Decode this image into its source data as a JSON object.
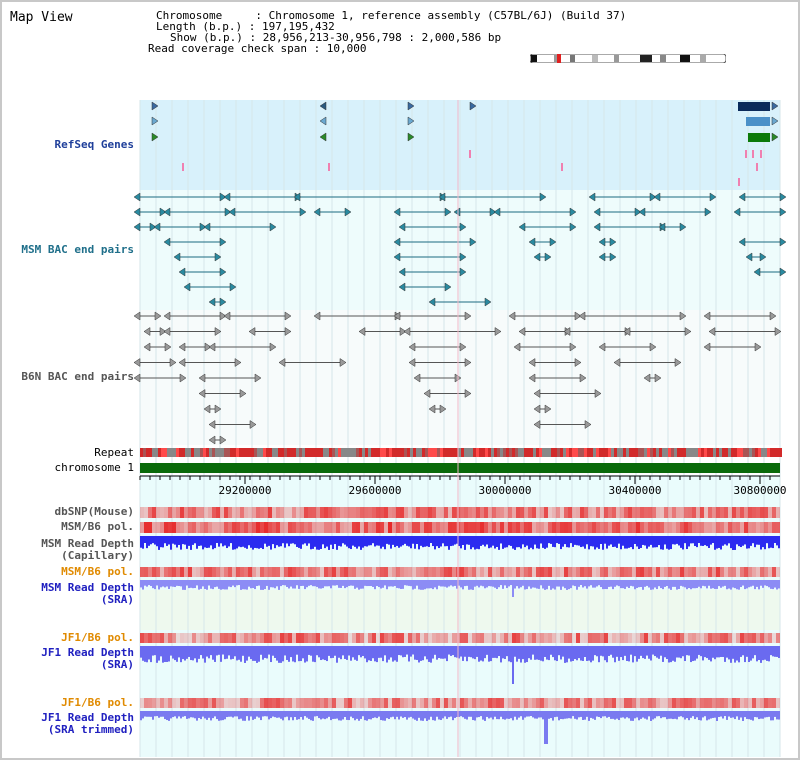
{
  "app": {
    "title": "Map View"
  },
  "header": {
    "chromosome_line": "Chromosome     : Chromosome 1, reference assembly (C57BL/6J) (Build 37)",
    "length_line": "Length (b.p.) : 197,195,432",
    "show_line": "Show (b.p.) : 28,956,213-30,956,798 : 2,000,586 bp",
    "coverage_line": "Read coverage check span : 10,000"
  },
  "tracks": {
    "refseq": "RefSeq Genes",
    "msm_bac": "MSM BAC end pairs",
    "b6n_bac": "B6N BAC end pairs",
    "repeat": "Repeat",
    "chromosome": "chromosome 1",
    "dbsnp": "dbSNP(Mouse)",
    "msm_b6_pol": "MSM/B6 pol.",
    "msm_depth_cap": "MSM Read Depth\n(Capillary)",
    "msm_b6_pol_2": "MSM/B6 pol.",
    "msm_depth_sra": "MSM Read Depth\n(SRA)",
    "jf1_b6_pol": "JF1/B6 pol.",
    "jf1_depth_sra": "JF1 Read Depth\n(SRA)",
    "jf1_b6_pol_2": "JF1/B6 pol.",
    "jf1_depth_trim": "JF1 Read Depth\n(SRA trimmed)"
  },
  "axis": {
    "ticks": [
      "29200000",
      "29600000",
      "30000000",
      "30400000",
      "30800000"
    ]
  },
  "colors": {
    "refseq_bg": "#d8f1fb",
    "bac_bg": "#eefcfc",
    "chromosome": "#0a6a0a",
    "repeat_red": "#d22a2a",
    "depth_blue": "#2b2bf0",
    "depth_light": "#8c8cf5"
  }
}
